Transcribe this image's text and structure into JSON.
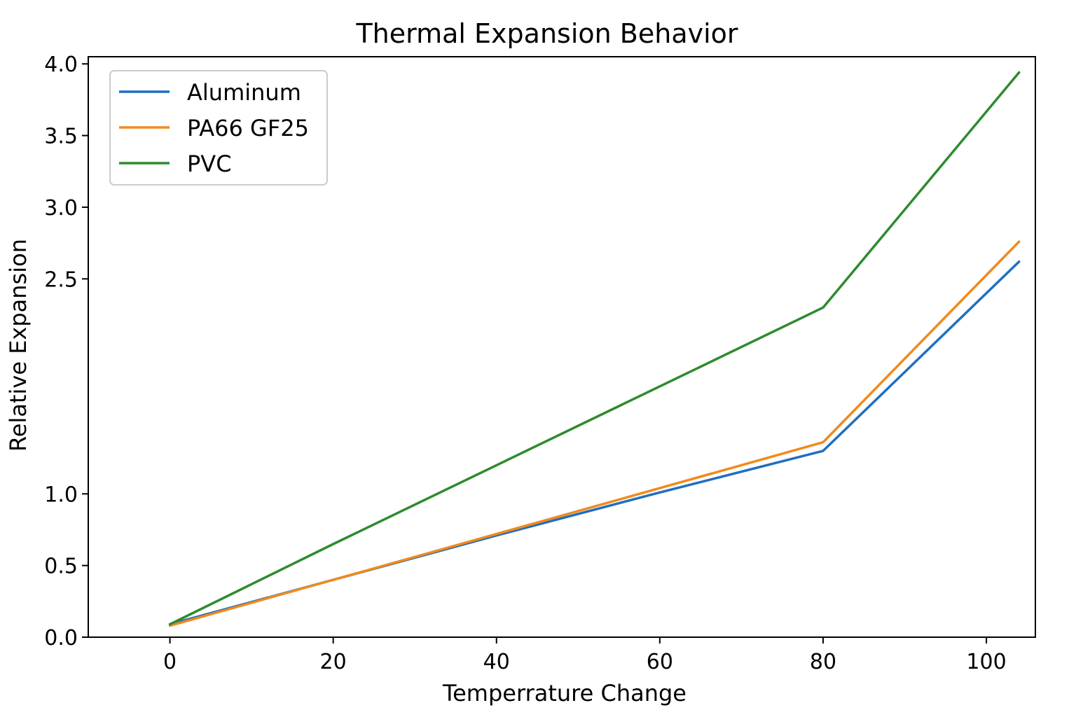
{
  "chart_data": {
    "type": "line",
    "title": "Thermal Expansion Behavior",
    "xlabel": "Temperrature Change",
    "ylabel": "Relative Expansion",
    "xlim": [
      -10,
      106
    ],
    "ylim": [
      0,
      4.05
    ],
    "xticks": [
      0,
      20,
      40,
      60,
      80,
      100
    ],
    "xtick_labels": [
      "0",
      "20",
      "40",
      "60",
      "80",
      "100"
    ],
    "yticks": [
      0.0,
      0.5,
      1.0,
      2.5,
      3.0,
      3.5,
      4.0
    ],
    "ytick_labels": [
      "0.0",
      "0.5",
      "1.0",
      "2.5",
      "3.0",
      "3.5",
      "4.0"
    ],
    "legend_position": "top-left",
    "grid": false,
    "series": [
      {
        "name": "Aluminum",
        "color": "#1f6fbf",
        "x": [
          0,
          20,
          40,
          60,
          80,
          104
        ],
        "y": [
          0.09,
          0.4,
          0.71,
          1.01,
          1.3,
          2.62
        ]
      },
      {
        "name": "PA66 GF25",
        "color": "#f08a1c",
        "x": [
          0,
          20,
          40,
          60,
          80,
          104
        ],
        "y": [
          0.08,
          0.4,
          0.72,
          1.04,
          1.36,
          2.76
        ]
      },
      {
        "name": "PVC",
        "color": "#2e8b2e",
        "x": [
          0,
          20,
          40,
          60,
          80,
          104
        ],
        "y": [
          0.09,
          0.65,
          1.2,
          1.75,
          2.3,
          3.94
        ]
      }
    ]
  }
}
